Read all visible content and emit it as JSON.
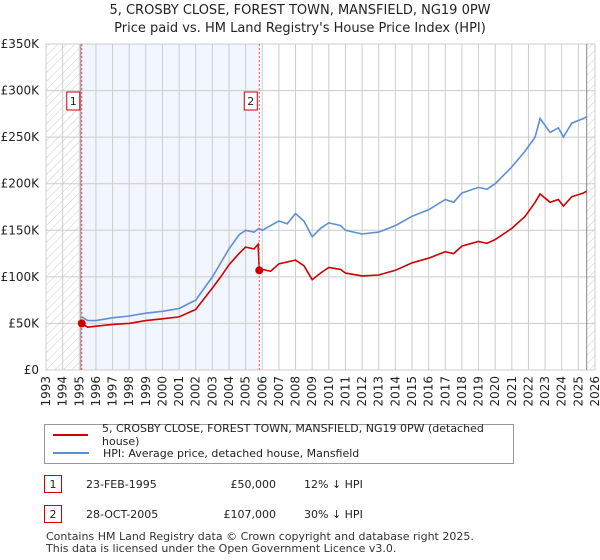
{
  "chart_data": {
    "type": "line",
    "title": "5, CROSBY CLOSE, FOREST TOWN, MANSFIELD, NG19 0PW",
    "subtitle": "Price paid vs. HM Land Registry's House Price Index (HPI)",
    "xlim": [
      1993,
      2026
    ],
    "ylim": [
      0,
      350000
    ],
    "x_ticks": [
      "1993",
      "1994",
      "1995",
      "1996",
      "1997",
      "1998",
      "1999",
      "2000",
      "2001",
      "2002",
      "2003",
      "2004",
      "2005",
      "2006",
      "2007",
      "2008",
      "2009",
      "2010",
      "2011",
      "2012",
      "2013",
      "2014",
      "2015",
      "2016",
      "2017",
      "2018",
      "2019",
      "2020",
      "2021",
      "2022",
      "2023",
      "2024",
      "2025",
      "2026"
    ],
    "y_ticks": [
      {
        "v": 0,
        "label": "£0"
      },
      {
        "v": 50000,
        "label": "£50K"
      },
      {
        "v": 100000,
        "label": "£100K"
      },
      {
        "v": 150000,
        "label": "£150K"
      },
      {
        "v": 200000,
        "label": "£200K"
      },
      {
        "v": 250000,
        "label": "£250K"
      },
      {
        "v": 300000,
        "label": "£300K"
      },
      {
        "v": 350000,
        "label": "£350K"
      }
    ],
    "grid": true,
    "series": [
      {
        "name": "5, CROSBY CLOSE, FOREST TOWN, MANSFIELD, NG19 0PW (detached house)",
        "color": "#cc0000",
        "points": [
          [
            1995.15,
            50000
          ],
          [
            1995.5,
            46000
          ],
          [
            1996,
            47000
          ],
          [
            1997,
            49000
          ],
          [
            1998,
            50000
          ],
          [
            1999,
            53000
          ],
          [
            2000,
            55000
          ],
          [
            2001,
            57000
          ],
          [
            2002,
            65000
          ],
          [
            2003,
            88000
          ],
          [
            2003.5,
            100000
          ],
          [
            2004,
            113000
          ],
          [
            2004.6,
            125000
          ],
          [
            2005,
            132000
          ],
          [
            2005.5,
            130000
          ],
          [
            2005.75,
            135000
          ],
          [
            2005.82,
            107000
          ],
          [
            2006,
            108000
          ],
          [
            2006.5,
            106000
          ],
          [
            2007,
            114000
          ],
          [
            2008,
            118000
          ],
          [
            2008.5,
            112000
          ],
          [
            2009,
            97000
          ],
          [
            2009.5,
            104000
          ],
          [
            2010,
            110000
          ],
          [
            2010.7,
            108000
          ],
          [
            2011,
            104000
          ],
          [
            2012,
            101000
          ],
          [
            2013,
            102000
          ],
          [
            2014,
            107000
          ],
          [
            2015,
            115000
          ],
          [
            2016,
            120000
          ],
          [
            2017,
            127000
          ],
          [
            2017.5,
            125000
          ],
          [
            2018,
            133000
          ],
          [
            2019,
            138000
          ],
          [
            2019.5,
            136000
          ],
          [
            2020,
            140000
          ],
          [
            2021,
            152000
          ],
          [
            2021.8,
            165000
          ],
          [
            2022.4,
            180000
          ],
          [
            2022.7,
            189000
          ],
          [
            2023.3,
            180000
          ],
          [
            2023.8,
            183000
          ],
          [
            2024.1,
            176000
          ],
          [
            2024.6,
            186000
          ],
          [
            2025.3,
            190000
          ],
          [
            2025.5,
            192000
          ]
        ]
      },
      {
        "name": "HPI: Average price, detached house, Mansfield",
        "color": "#5b8fd6",
        "points": [
          [
            1995.15,
            57000
          ],
          [
            1995.5,
            53000
          ],
          [
            1996,
            53000
          ],
          [
            1997,
            56000
          ],
          [
            1998,
            58000
          ],
          [
            1999,
            61000
          ],
          [
            2000,
            63000
          ],
          [
            2001,
            66000
          ],
          [
            2002,
            75000
          ],
          [
            2003,
            100000
          ],
          [
            2003.5,
            115000
          ],
          [
            2004,
            130000
          ],
          [
            2004.6,
            145000
          ],
          [
            2005,
            150000
          ],
          [
            2005.5,
            148000
          ],
          [
            2005.8,
            152000
          ],
          [
            2006,
            150000
          ],
          [
            2006.5,
            155000
          ],
          [
            2007,
            160000
          ],
          [
            2007.5,
            157000
          ],
          [
            2008,
            168000
          ],
          [
            2008.5,
            160000
          ],
          [
            2009,
            143000
          ],
          [
            2009.5,
            152000
          ],
          [
            2010,
            158000
          ],
          [
            2010.7,
            155000
          ],
          [
            2011,
            150000
          ],
          [
            2012,
            146000
          ],
          [
            2013,
            148000
          ],
          [
            2014,
            155000
          ],
          [
            2015,
            165000
          ],
          [
            2016,
            172000
          ],
          [
            2017,
            183000
          ],
          [
            2017.5,
            180000
          ],
          [
            2018,
            190000
          ],
          [
            2019,
            196000
          ],
          [
            2019.5,
            194000
          ],
          [
            2020,
            200000
          ],
          [
            2021,
            218000
          ],
          [
            2021.8,
            235000
          ],
          [
            2022.4,
            250000
          ],
          [
            2022.7,
            270000
          ],
          [
            2023.3,
            255000
          ],
          [
            2023.8,
            260000
          ],
          [
            2024.1,
            250000
          ],
          [
            2024.6,
            265000
          ],
          [
            2025.3,
            270000
          ],
          [
            2025.5,
            272000
          ]
        ]
      }
    ],
    "annotations": [
      {
        "label": "1",
        "x": 1995.15,
        "value": 50000
      },
      {
        "label": "2",
        "x": 2005.82,
        "value": 107000
      }
    ],
    "legend": "below"
  },
  "transactions": [
    {
      "id": "1",
      "date": "23-FEB-1995",
      "price": "£50,000",
      "hpi": "12% ↓ HPI"
    },
    {
      "id": "2",
      "date": "28-OCT-2005",
      "price": "£107,000",
      "hpi": "30% ↓ HPI"
    }
  ],
  "footer": [
    "Contains HM Land Registry data © Crown copyright and database right 2025.",
    "This data is licensed under the Open Government Licence v3.0."
  ]
}
